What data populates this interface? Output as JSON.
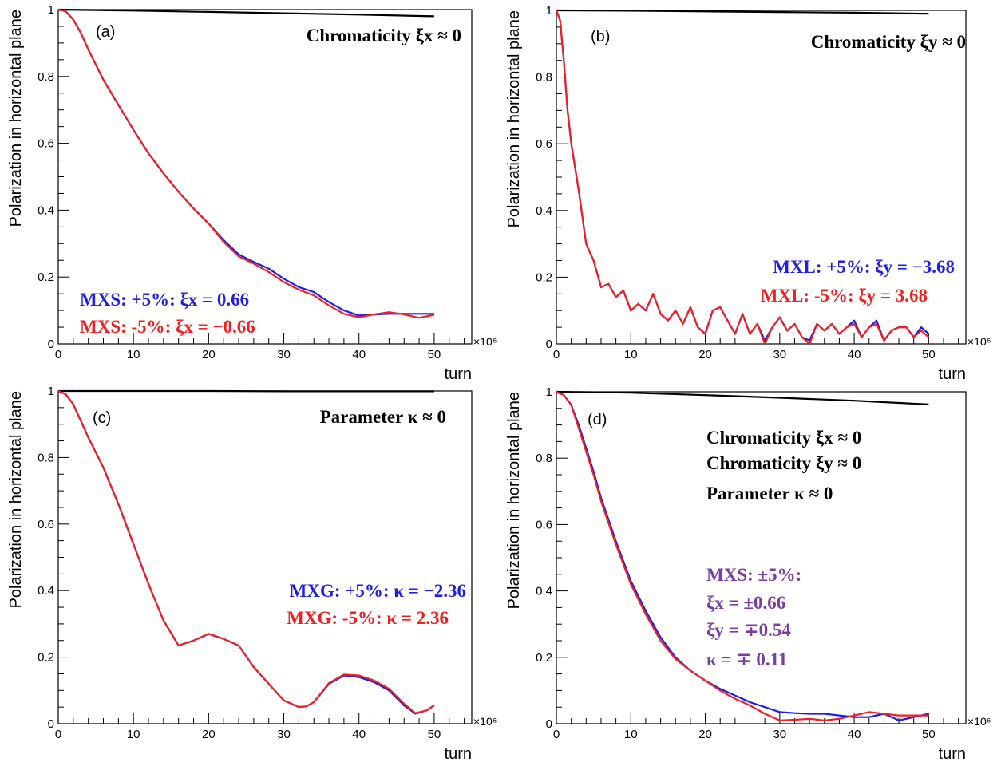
{
  "colors": {
    "blue": "#1f1fe6",
    "red": "#ee2020",
    "black": "#000000",
    "purple": "#7a3ea3"
  },
  "chart_data": [
    {
      "type": "line",
      "panel_label": "(a)",
      "xlabel": "turn",
      "ylabel": "Polarization in horizontal plane",
      "x_exponent": "×10⁶",
      "xlim": [
        0,
        55
      ],
      "ylim": [
        0,
        1
      ],
      "xticks": [
        0,
        10,
        20,
        30,
        40,
        50
      ],
      "yticks": [
        0,
        0.2,
        0.4,
        0.6,
        0.8,
        1
      ],
      "ytick_labels": [
        "0",
        "0.2",
        "0.4",
        "0.6",
        "0.8",
        "1"
      ],
      "annotations": [
        {
          "text": "Chromaticity  ξx ≈ 0",
          "color": "black"
        },
        {
          "text": "MXS: +5%: ξx = 0.66",
          "color": "blue"
        },
        {
          "text": "MXS: -5%:  ξx = −0.66",
          "color": "red"
        }
      ],
      "series": [
        {
          "color": "black",
          "x": [
            0,
            10,
            20,
            30,
            40,
            50
          ],
          "y": [
            1.0,
            0.997,
            0.993,
            0.989,
            0.985,
            0.98
          ]
        },
        {
          "color": "blue",
          "x": [
            0,
            1,
            2,
            3,
            4,
            5,
            6,
            8,
            10,
            12,
            14,
            16,
            18,
            20,
            22,
            24,
            26,
            28,
            30,
            32,
            34,
            36,
            38,
            40,
            42,
            44,
            46,
            48,
            50
          ],
          "y": [
            1.0,
            0.995,
            0.97,
            0.93,
            0.88,
            0.835,
            0.79,
            0.715,
            0.64,
            0.57,
            0.51,
            0.455,
            0.405,
            0.36,
            0.31,
            0.268,
            0.245,
            0.225,
            0.195,
            0.17,
            0.155,
            0.125,
            0.1,
            0.085,
            0.088,
            0.09,
            0.09,
            0.09,
            0.09
          ]
        },
        {
          "color": "red",
          "x": [
            0,
            1,
            2,
            3,
            4,
            5,
            6,
            8,
            10,
            12,
            14,
            16,
            18,
            20,
            22,
            24,
            26,
            28,
            30,
            32,
            34,
            36,
            38,
            40,
            42,
            44,
            46,
            48,
            50
          ],
          "y": [
            1.0,
            0.995,
            0.97,
            0.93,
            0.88,
            0.835,
            0.79,
            0.715,
            0.64,
            0.57,
            0.51,
            0.455,
            0.405,
            0.36,
            0.305,
            0.262,
            0.24,
            0.215,
            0.185,
            0.162,
            0.145,
            0.115,
            0.09,
            0.08,
            0.088,
            0.095,
            0.088,
            0.078,
            0.087
          ]
        }
      ]
    },
    {
      "type": "line",
      "panel_label": "(b)",
      "xlabel": "turn",
      "ylabel": "Polarization in horizontal plane",
      "x_exponent": "×10⁶",
      "xlim": [
        0,
        55
      ],
      "ylim": [
        0,
        1
      ],
      "xticks": [
        0,
        10,
        20,
        30,
        40,
        50
      ],
      "yticks": [
        0,
        0.2,
        0.4,
        0.6,
        0.8,
        1
      ],
      "ytick_labels": [
        "0",
        "0.2",
        "0.4",
        "0.6",
        "0.8",
        "1"
      ],
      "annotations": [
        {
          "text": "Chromaticity  ξy ≈ 0",
          "color": "black"
        },
        {
          "text": "MXL: +5%: ξy = −3.68",
          "color": "blue"
        },
        {
          "text": "MXL: -5%:  ξy = 3.68",
          "color": "red"
        }
      ],
      "series": [
        {
          "color": "black",
          "x": [
            0,
            10,
            20,
            30,
            40,
            50
          ],
          "y": [
            1.0,
            0.999,
            0.997,
            0.995,
            0.993,
            0.99
          ]
        },
        {
          "color": "blue",
          "x": [
            0,
            0.5,
            1,
            1.5,
            2,
            3,
            4,
            5,
            6,
            7,
            8,
            9,
            10,
            11,
            12,
            13,
            14,
            15,
            16,
            17,
            18,
            19,
            20,
            21,
            22,
            23,
            24,
            25,
            26,
            27,
            28,
            29,
            30,
            31,
            32,
            33,
            34,
            35,
            36,
            37,
            38,
            39,
            40,
            41,
            42,
            43,
            44,
            45,
            46,
            47,
            48,
            49,
            50
          ],
          "y": [
            1.0,
            0.97,
            0.85,
            0.7,
            0.6,
            0.46,
            0.3,
            0.25,
            0.17,
            0.18,
            0.14,
            0.16,
            0.1,
            0.12,
            0.1,
            0.15,
            0.09,
            0.07,
            0.1,
            0.06,
            0.11,
            0.05,
            0.03,
            0.1,
            0.11,
            0.07,
            0.03,
            0.09,
            0.03,
            0.06,
            0.01,
            0.05,
            0.08,
            0.04,
            0.06,
            0.02,
            0.01,
            0.06,
            0.04,
            0.06,
            0.03,
            0.05,
            0.07,
            0.02,
            0.05,
            0.07,
            0.01,
            0.04,
            0.05,
            0.05,
            0.02,
            0.05,
            0.03
          ]
        },
        {
          "color": "red",
          "x": [
            0,
            0.5,
            1,
            1.5,
            2,
            3,
            4,
            5,
            6,
            7,
            8,
            9,
            10,
            11,
            12,
            13,
            14,
            15,
            16,
            17,
            18,
            19,
            20,
            21,
            22,
            23,
            24,
            25,
            26,
            27,
            28,
            29,
            30,
            31,
            32,
            33,
            34,
            35,
            36,
            37,
            38,
            39,
            40,
            41,
            42,
            43,
            44,
            45,
            46,
            47,
            48,
            49,
            50
          ],
          "y": [
            1.0,
            0.97,
            0.85,
            0.7,
            0.6,
            0.46,
            0.3,
            0.25,
            0.17,
            0.18,
            0.14,
            0.16,
            0.1,
            0.12,
            0.1,
            0.15,
            0.09,
            0.07,
            0.1,
            0.06,
            0.11,
            0.05,
            0.03,
            0.1,
            0.11,
            0.07,
            0.03,
            0.09,
            0.03,
            0.06,
            0.0,
            0.05,
            0.08,
            0.04,
            0.06,
            0.02,
            0.0,
            0.06,
            0.04,
            0.06,
            0.03,
            0.05,
            0.06,
            0.02,
            0.05,
            0.06,
            0.01,
            0.04,
            0.05,
            0.05,
            0.02,
            0.04,
            0.02
          ]
        }
      ]
    },
    {
      "type": "line",
      "panel_label": "(c)",
      "xlabel": "turn",
      "ylabel": "Polarization in horizontal plane",
      "x_exponent": "×10⁶",
      "xlim": [
        0,
        55
      ],
      "ylim": [
        0,
        1
      ],
      "xticks": [
        0,
        10,
        20,
        30,
        40,
        50
      ],
      "yticks": [
        0,
        0.2,
        0.4,
        0.6,
        0.8,
        1
      ],
      "ytick_labels": [
        "0",
        "0.2",
        "0.4",
        "0.6",
        "0.8",
        "1"
      ],
      "annotations": [
        {
          "text": "Parameter  κ ≈ 0",
          "color": "black"
        },
        {
          "text": "MXG: +5%: κ = −2.36",
          "color": "blue"
        },
        {
          "text": "MXG: -5%:  κ = 2.36",
          "color": "red"
        }
      ],
      "series": [
        {
          "color": "black",
          "x": [
            0,
            10,
            20,
            30,
            40,
            50
          ],
          "y": [
            1.0,
            1.0,
            1.0,
            0.999,
            0.999,
            0.999
          ]
        },
        {
          "color": "blue",
          "x": [
            0,
            1,
            2,
            3,
            4,
            6,
            8,
            10,
            12,
            14,
            16,
            18,
            20,
            22,
            24,
            26,
            28,
            30,
            32,
            33,
            34,
            36,
            38,
            40,
            42,
            44,
            46,
            47.5,
            49,
            50
          ],
          "y": [
            1.0,
            0.99,
            0.96,
            0.91,
            0.86,
            0.77,
            0.66,
            0.54,
            0.42,
            0.31,
            0.235,
            0.25,
            0.27,
            0.255,
            0.235,
            0.17,
            0.12,
            0.07,
            0.05,
            0.052,
            0.065,
            0.12,
            0.145,
            0.14,
            0.125,
            0.1,
            0.055,
            0.03,
            0.04,
            0.055
          ]
        },
        {
          "color": "red",
          "x": [
            0,
            1,
            2,
            3,
            4,
            6,
            8,
            10,
            12,
            14,
            16,
            18,
            20,
            22,
            24,
            26,
            28,
            30,
            32,
            33,
            34,
            36,
            38,
            40,
            42,
            44,
            46,
            47.5,
            49,
            50
          ],
          "y": [
            1.0,
            0.99,
            0.96,
            0.91,
            0.86,
            0.77,
            0.66,
            0.54,
            0.42,
            0.31,
            0.235,
            0.25,
            0.27,
            0.255,
            0.235,
            0.17,
            0.12,
            0.07,
            0.05,
            0.052,
            0.065,
            0.122,
            0.148,
            0.145,
            0.13,
            0.105,
            0.06,
            0.032,
            0.04,
            0.055
          ]
        }
      ]
    },
    {
      "type": "line",
      "panel_label": "(d)",
      "xlabel": "turn",
      "ylabel": "Polarization in horizontal plane",
      "x_exponent": "×10⁶",
      "xlim": [
        0,
        55
      ],
      "ylim": [
        0,
        1
      ],
      "xticks": [
        0,
        10,
        20,
        30,
        40,
        50
      ],
      "yticks": [
        0,
        0.2,
        0.4,
        0.6,
        0.8,
        1
      ],
      "ytick_labels": [
        "0",
        "0.2",
        "0.4",
        "0.6",
        "0.8",
        "1"
      ],
      "annotations": [
        {
          "text": "Chromaticity  ξx ≈ 0",
          "color": "black"
        },
        {
          "text": "Chromaticity  ξy ≈ 0",
          "color": "black"
        },
        {
          "text": "Parameter  κ ≈ 0",
          "color": "black"
        },
        {
          "text": "MXS: ±5%:",
          "color": "purple"
        },
        {
          "text": "ξx =  ±0.66",
          "color": "purple"
        },
        {
          "text": "ξy = ∓0.54",
          "color": "purple"
        },
        {
          "text": "κ = ∓ 0.11",
          "color": "purple"
        }
      ],
      "series": [
        {
          "color": "black",
          "x": [
            0,
            10,
            20,
            30,
            40,
            50
          ],
          "y": [
            1.0,
            0.997,
            0.99,
            0.982,
            0.973,
            0.962
          ]
        },
        {
          "color": "blue",
          "x": [
            0,
            1,
            2,
            3,
            4,
            5,
            6,
            8,
            10,
            12,
            14,
            16,
            18,
            20,
            22,
            24,
            26,
            28,
            30,
            32,
            34,
            36,
            38,
            40,
            42,
            44,
            46,
            48,
            50
          ],
          "y": [
            1.0,
            0.99,
            0.96,
            0.9,
            0.83,
            0.76,
            0.68,
            0.55,
            0.43,
            0.34,
            0.26,
            0.2,
            0.16,
            0.13,
            0.105,
            0.085,
            0.065,
            0.05,
            0.035,
            0.032,
            0.03,
            0.03,
            0.025,
            0.02,
            0.02,
            0.03,
            0.01,
            0.02,
            0.03
          ]
        },
        {
          "color": "red",
          "x": [
            0,
            1,
            2,
            3,
            4,
            5,
            6,
            8,
            10,
            12,
            14,
            16,
            18,
            20,
            22,
            24,
            26,
            28,
            30,
            32,
            34,
            36,
            38,
            40,
            42,
            44,
            46,
            48,
            50
          ],
          "y": [
            1.0,
            0.99,
            0.96,
            0.89,
            0.82,
            0.75,
            0.67,
            0.54,
            0.42,
            0.33,
            0.25,
            0.195,
            0.16,
            0.13,
            0.1,
            0.075,
            0.055,
            0.03,
            0.01,
            0.012,
            0.015,
            0.01,
            0.015,
            0.025,
            0.035,
            0.03,
            0.025,
            0.025,
            0.025
          ]
        }
      ]
    }
  ]
}
